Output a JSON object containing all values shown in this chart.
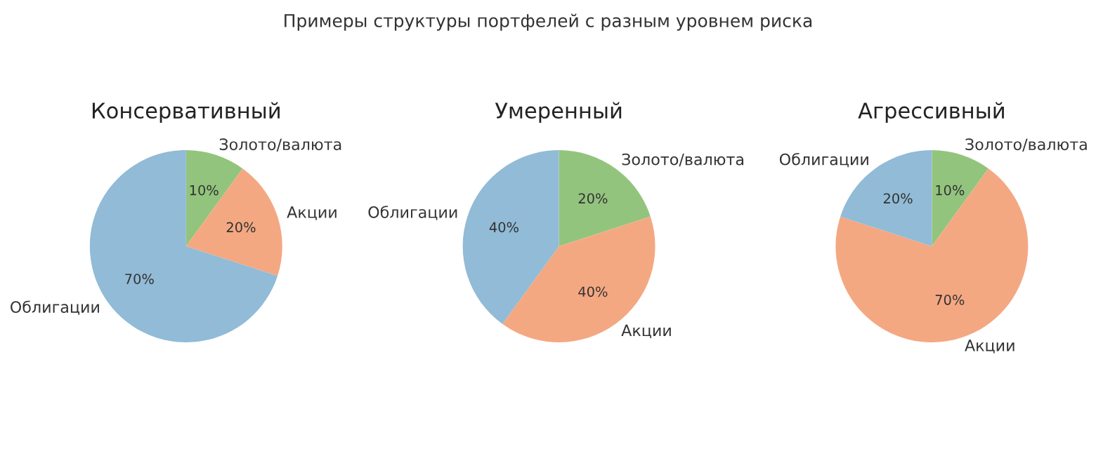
{
  "chart_data": [
    {
      "type": "pie",
      "title": "Консервативный",
      "annotations": [
        "Примеры структуры портфелей с разным уровнем риска"
      ],
      "categories": [
        "Золото/валюта",
        "Акции",
        "Облигации"
      ],
      "values": [
        10,
        20,
        70
      ],
      "value_labels": [
        "10%",
        "20%",
        "70%"
      ],
      "colors": [
        "#93c47d",
        "#f4a882",
        "#91bbd6"
      ]
    },
    {
      "type": "pie",
      "title": "Умеренный",
      "categories": [
        "Золото/валюта",
        "Акции",
        "Облигации"
      ],
      "values": [
        20,
        40,
        40
      ],
      "value_labels": [
        "20%",
        "40%",
        "40%"
      ],
      "colors": [
        "#93c47d",
        "#f4a882",
        "#91bbd6"
      ]
    },
    {
      "type": "pie",
      "title": "Агрессивный",
      "categories": [
        "Золото/валюта",
        "Акции",
        "Облигации"
      ],
      "values": [
        10,
        70,
        20
      ],
      "value_labels": [
        "10%",
        "70%",
        "20%"
      ],
      "colors": [
        "#93c47d",
        "#f4a882",
        "#91bbd6"
      ]
    }
  ]
}
